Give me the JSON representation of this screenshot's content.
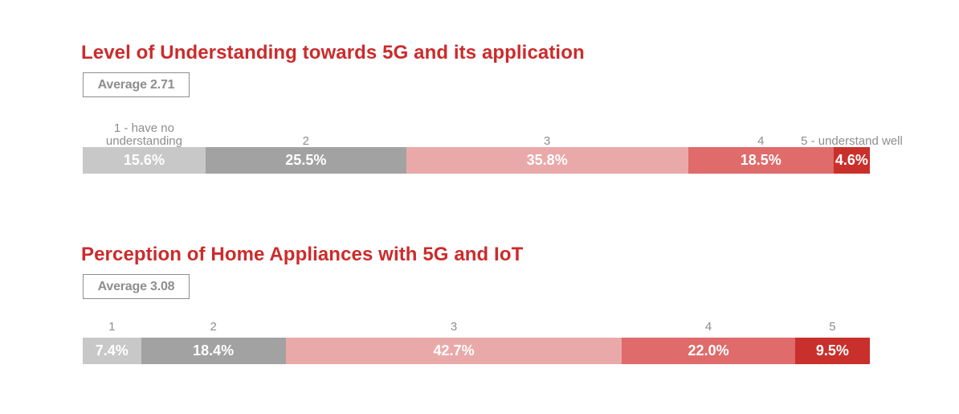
{
  "colors": {
    "title": "#cc2b2b",
    "scale": [
      "#c8c8c8",
      "#a3a2a2",
      "#eaa9a9",
      "#df6b6b",
      "#c9302c"
    ]
  },
  "chart_data": [
    {
      "type": "bar",
      "stacked": true,
      "orientation": "horizontal",
      "title": "Level of Understanding towards 5G and its application",
      "average_label": "Average 2.71",
      "categories": [
        "1 - have no understanding",
        "2",
        "3",
        "4",
        "5 - understand well"
      ],
      "values": [
        15.6,
        25.5,
        35.8,
        18.5,
        4.6
      ],
      "value_labels": [
        "15.6%",
        "25.5%",
        "35.8%",
        "18.5%",
        "4.6%"
      ],
      "unit": "%"
    },
    {
      "type": "bar",
      "stacked": true,
      "orientation": "horizontal",
      "title": "Perception of Home Appliances with 5G and IoT",
      "average_label": "Average 3.08",
      "categories": [
        "1",
        "2",
        "3",
        "4",
        "5"
      ],
      "values": [
        7.4,
        18.4,
        42.7,
        22.0,
        9.5
      ],
      "value_labels": [
        "7.4%",
        "18.4%",
        "42.7%",
        "22.0%",
        "9.5%"
      ],
      "unit": "%"
    }
  ]
}
